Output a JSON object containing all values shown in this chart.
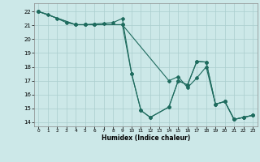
{
  "xlabel": "Humidex (Indice chaleur)",
  "bg_color": "#cce8e8",
  "line_color": "#1e6b5e",
  "grid_color": "#aacece",
  "xlim": [
    -0.5,
    23.5
  ],
  "ylim": [
    13.7,
    22.6
  ],
  "yticks": [
    14,
    15,
    16,
    17,
    18,
    19,
    20,
    21,
    22
  ],
  "xticks": [
    0,
    1,
    2,
    3,
    4,
    5,
    6,
    7,
    8,
    9,
    10,
    11,
    12,
    13,
    14,
    15,
    16,
    17,
    18,
    19,
    20,
    21,
    22,
    23
  ],
  "lines": [
    {
      "x": [
        0,
        1,
        2,
        3,
        4,
        5,
        6,
        7,
        8,
        9,
        10,
        11,
        12,
        14,
        15,
        16,
        17,
        18,
        19,
        20,
        21,
        22,
        23
      ],
      "y": [
        22.0,
        21.8,
        21.5,
        21.2,
        21.05,
        21.05,
        21.1,
        21.15,
        21.2,
        21.5,
        17.5,
        14.85,
        14.35,
        15.1,
        17.0,
        16.7,
        18.4,
        18.35,
        15.3,
        15.5,
        14.2,
        14.35,
        14.5
      ]
    },
    {
      "x": [
        0,
        4,
        5,
        6,
        9,
        14,
        15,
        16,
        17,
        18,
        19,
        20,
        21,
        22,
        23
      ],
      "y": [
        22.0,
        21.05,
        21.05,
        21.05,
        21.05,
        17.0,
        17.3,
        16.5,
        17.2,
        18.0,
        15.3,
        15.5,
        14.2,
        14.35,
        14.5
      ]
    },
    {
      "x": [
        0,
        4,
        5,
        6,
        9,
        10,
        11,
        12,
        14,
        15,
        16,
        17,
        18,
        19,
        20,
        21,
        22,
        23
      ],
      "y": [
        22.0,
        21.05,
        21.05,
        21.05,
        21.05,
        17.5,
        14.85,
        14.35,
        15.1,
        17.0,
        16.7,
        18.4,
        18.35,
        15.3,
        15.5,
        14.2,
        14.35,
        14.5
      ]
    }
  ]
}
